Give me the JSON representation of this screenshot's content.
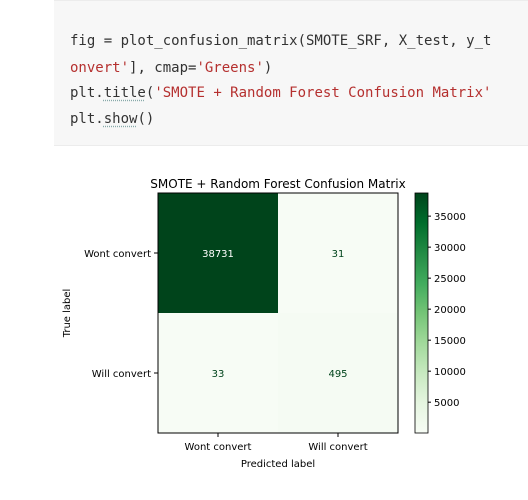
{
  "code_cell": {
    "lines": [
      "fig = plot_confusion_matrix(SMOTE_SRF, X_test, y_t",
      "onvert'], cmap='Greens')",
      "plt.title('SMOTE + Random Forest Confusion Matrix'",
      "plt.show()"
    ],
    "tokens": {
      "l1_text": "fig = plot_confusion_matrix(SMOTE_SRF, X_test, y_t",
      "l2_str": "onvert'",
      "l2_mid": "], cmap=",
      "l2_str2": "'Greens'",
      "l2_end": ")",
      "l3_pre": "plt.",
      "l3_fn": "title",
      "l3_paren": "(",
      "l3_str": "'SMOTE + Random Forest Confusion Matrix'",
      "l4_pre": "plt.",
      "l4_fn": "show",
      "l4_end": "()"
    }
  },
  "chart_data": {
    "type": "heatmap",
    "title": "SMOTE + Random Forest Confusion Matrix",
    "xlabel": "Predicted label",
    "ylabel": "True label",
    "x_categories": [
      "Wont convert",
      "Will convert"
    ],
    "y_categories": [
      "Wont convert",
      "Will convert"
    ],
    "values": [
      [
        38731,
        31
      ],
      [
        33,
        495
      ]
    ],
    "cmap": "Greens",
    "colorbar": {
      "vmin": 31,
      "vmax": 38731,
      "ticks": [
        5000,
        10000,
        15000,
        20000,
        25000,
        30000,
        35000
      ]
    },
    "colors": {
      "dark_green": "#00441b",
      "light_green": "#f7fcf5",
      "text_on_dark": "#ffffff",
      "text_on_light": "#00441b"
    }
  }
}
